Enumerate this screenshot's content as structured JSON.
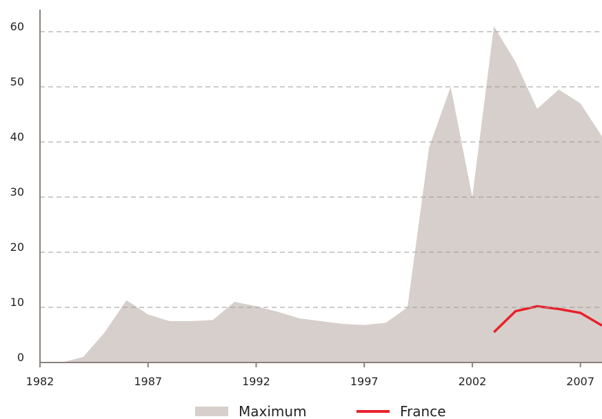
{
  "chart_data": {
    "type": "area-line",
    "x": [
      1982,
      1983,
      1984,
      1985,
      1986,
      1987,
      1988,
      1989,
      1990,
      1991,
      1992,
      1993,
      1994,
      1995,
      1996,
      1997,
      1998,
      1999,
      2000,
      2001,
      2002,
      2003,
      2004,
      2005,
      2006,
      2007,
      2008
    ],
    "series": [
      {
        "name": "Maximum",
        "color": "#d6cfcb",
        "kind": "area",
        "values": [
          0,
          0,
          1,
          5.5,
          11.3,
          8.7,
          7.5,
          7.5,
          7.7,
          11,
          10.2,
          9.2,
          8,
          7.5,
          7,
          6.8,
          7.2,
          10,
          39,
          50,
          30,
          61,
          54.5,
          46,
          49.5,
          47,
          41
        ]
      },
      {
        "name": "France",
        "color": "#e8202a",
        "kind": "line",
        "values": [
          null,
          null,
          null,
          null,
          null,
          null,
          null,
          null,
          null,
          null,
          null,
          null,
          null,
          null,
          null,
          null,
          null,
          null,
          null,
          null,
          null,
          5.5,
          9.3,
          10.2,
          9.7,
          9,
          6.7
        ]
      }
    ],
    "xlim": [
      1982,
      2008
    ],
    "xticks": [
      1982,
      1987,
      1992,
      1997,
      2002,
      2007
    ],
    "ylim": [
      0,
      64
    ],
    "yticks": [
      0,
      10,
      20,
      30,
      40,
      50,
      60
    ],
    "grid": true,
    "legend": "bottom"
  }
}
